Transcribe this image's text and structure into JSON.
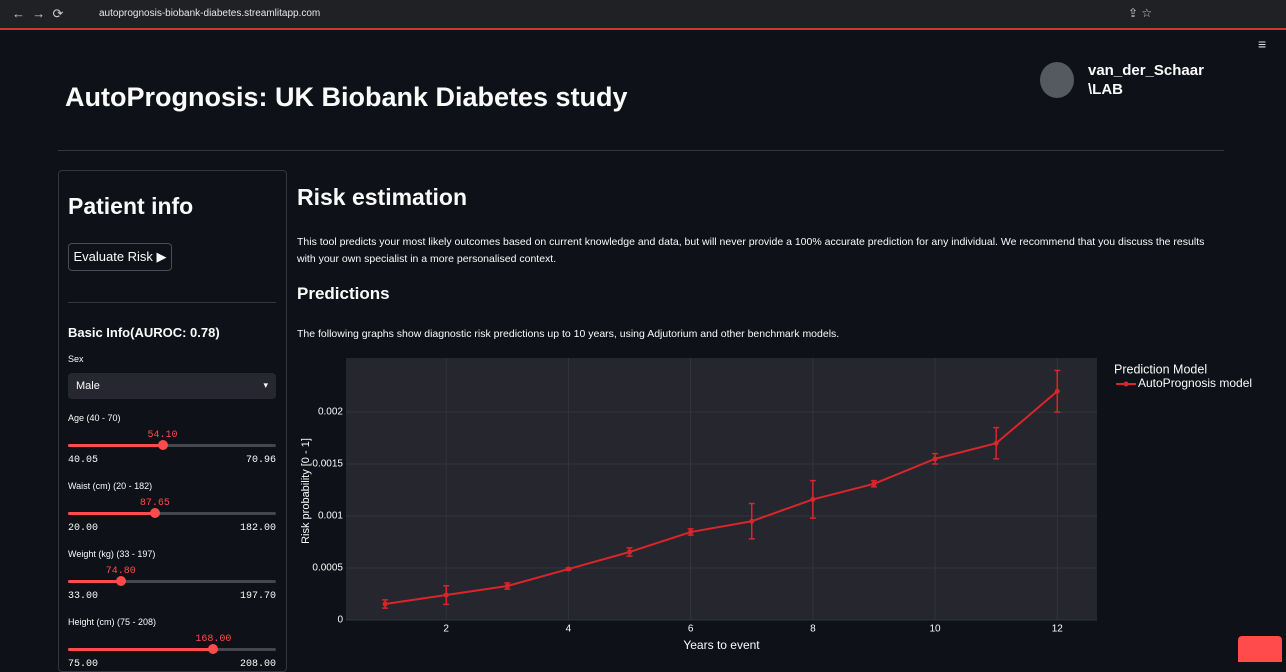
{
  "browser": {
    "url": "autoprognosis-biobank-diabetes.streamlitapp.com"
  },
  "header": {
    "title": "AutoPrognosis: UK Biobank Diabetes study",
    "logo": [
      "van_der_Schaar",
      "\\LAB"
    ]
  },
  "sidebar": {
    "title": "Patient info",
    "button": "Evaluate Risk ▶",
    "section": "Basic Info(AUROC: 0.78)",
    "select": {
      "label": "Sex",
      "value": "Male"
    },
    "sliders": [
      {
        "label": "Age (40 - 70)",
        "value": "54.10",
        "min": "40.05",
        "max": "70.96"
      },
      {
        "label": "Waist (cm) (20 - 182)",
        "value": "87.65",
        "min": "20.00",
        "max": "182.00"
      },
      {
        "label": "Weight (kg) (33 - 197)",
        "value": "74.80",
        "min": "33.00",
        "max": "197.70"
      },
      {
        "label": "Height (cm) (75 - 208)",
        "value": "168.00",
        "min": "75.00",
        "max": "208.00"
      }
    ]
  },
  "main": {
    "heading": "Risk estimation",
    "text": "This tool predicts your most likely outcomes based on current knowledge and data, but will never provide a 100% accurate prediction for any individual. We recommend that you discuss the results with your own specialist in a more personalised context.",
    "subheading": "Predictions",
    "caption": "The following graphs show diagnostic risk predictions up to 10 years, using Adjutorium and other benchmark models."
  },
  "chart_data": {
    "type": "line",
    "x_label": "Years to event",
    "y_label": "Risk probability [0 - 1]",
    "legend_title": "Prediction Model",
    "legend": "top-right-outside",
    "grid": true,
    "x": [
      1,
      2,
      3,
      4,
      5,
      6,
      7,
      8,
      9,
      10,
      11,
      12
    ],
    "series": [
      {
        "name": "AutoPrognosis model",
        "color": "#d8262a",
        "values": [
          0.000154,
          0.00024,
          0.000327,
          0.00049,
          0.000654,
          0.000846,
          0.00095,
          0.00116,
          0.00131,
          0.00155,
          0.0017,
          0.0022
        ],
        "errors": [
          4e-05,
          9e-05,
          3e-05,
          1e-05,
          4e-05,
          3e-05,
          0.00017,
          0.00018,
          3e-05,
          5e-05,
          0.00015,
          0.0002
        ]
      }
    ],
    "xlim": [
      0.36,
      12.65
    ],
    "xticks": [
      2,
      4,
      6,
      8,
      10,
      12
    ],
    "ylim": [
      0,
      0.00252
    ],
    "yticks": [
      0,
      0.0005,
      0.001,
      0.0015,
      0.002
    ]
  }
}
